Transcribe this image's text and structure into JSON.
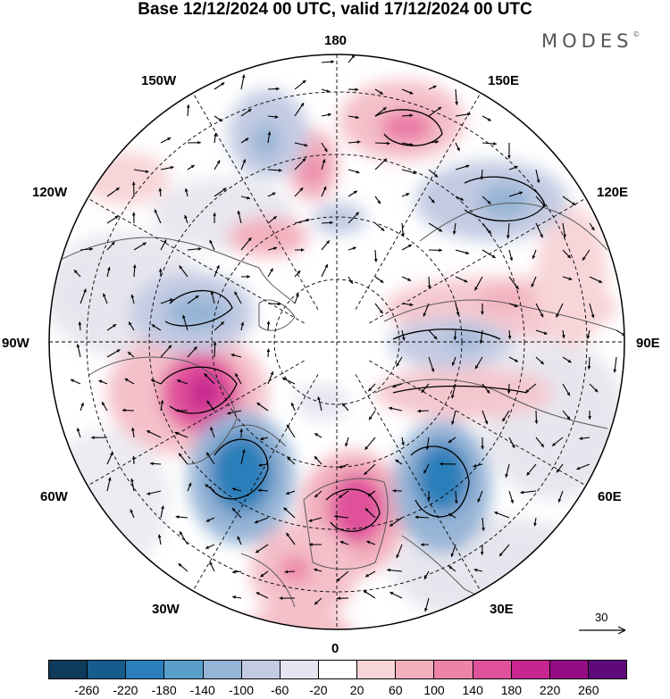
{
  "title": "Base 12/12/2024 00 UTC, valid 17/12/2024 00 UTC",
  "brand": "MODES",
  "brand_mark": "©",
  "longitude_labels": {
    "lon_180": "180",
    "lon_150E": "150E",
    "lon_120E": "120E",
    "lon_90E": "90E",
    "lon_60E": "60E",
    "lon_30E": "30E",
    "lon_0": "0",
    "lon_30W": "30W",
    "lon_60W": "60W",
    "lon_90W": "90W",
    "lon_120W": "120W",
    "lon_150W": "150W"
  },
  "vector_scale_label": "30",
  "legend": {
    "colors": [
      "#0e3a5b",
      "#155d8c",
      "#2a7fba",
      "#5a9fcc",
      "#95b4d6",
      "#c3cbe3",
      "#e6e4f0",
      "#ffffff",
      "#f8d5d8",
      "#f2b0bd",
      "#ec84a8",
      "#e0519b",
      "#c7268f",
      "#950c84",
      "#5e0a7a"
    ],
    "ticks": [
      "-260",
      "-220",
      "-180",
      "-140",
      "-100",
      "-60",
      "-20",
      "20",
      "60",
      "100",
      "140",
      "180",
      "220",
      "260"
    ]
  }
}
